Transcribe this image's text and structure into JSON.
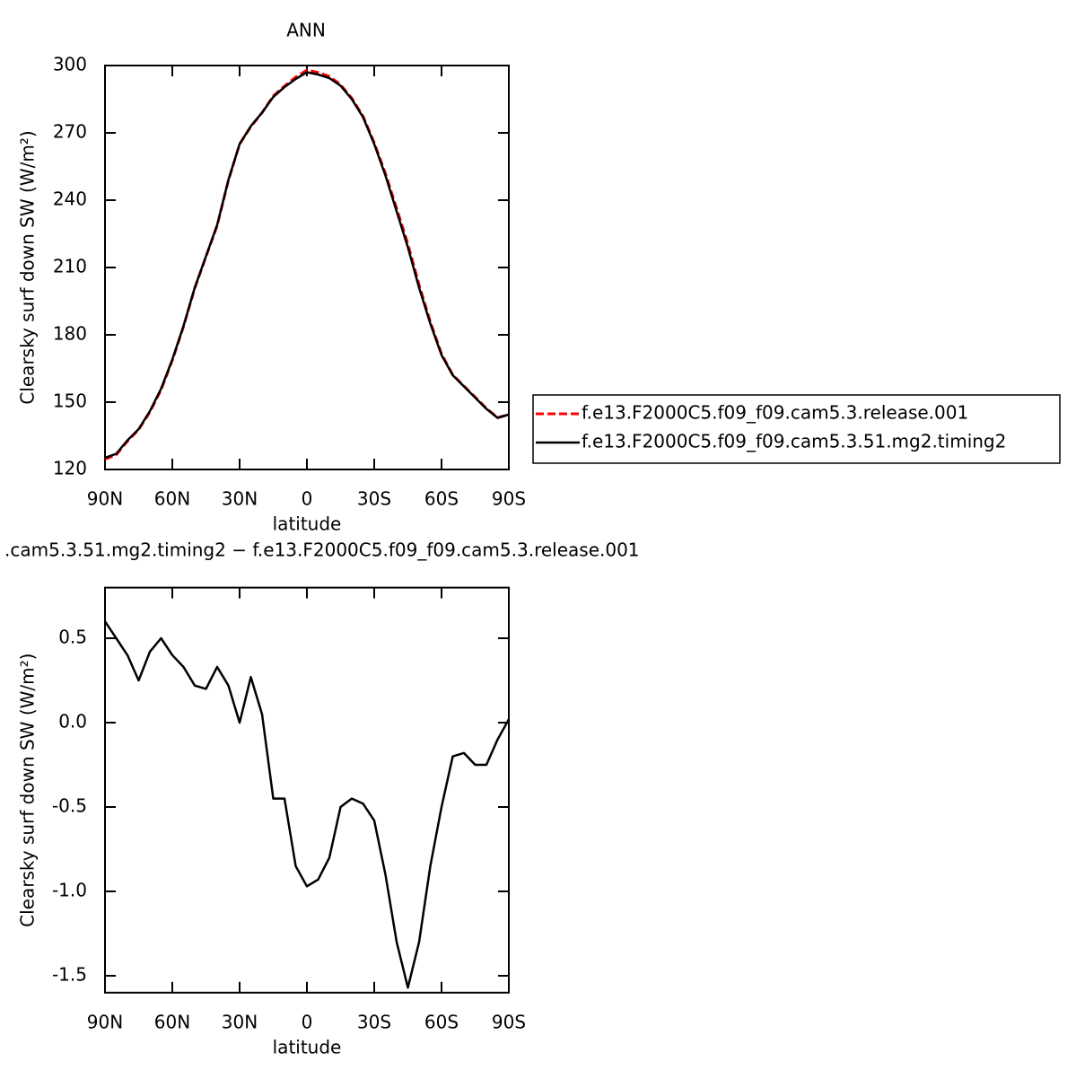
{
  "chart_data": [
    {
      "type": "line",
      "title": "ANN",
      "xlabel": "latitude",
      "ylabel": "Clearsky surf down SW (W/m²)",
      "x": [
        90,
        85,
        80,
        75,
        70,
        65,
        60,
        55,
        50,
        45,
        40,
        35,
        30,
        25,
        20,
        15,
        10,
        5,
        0,
        -5,
        -10,
        -15,
        -20,
        -25,
        -30,
        -35,
        -40,
        -45,
        -50,
        -55,
        -60,
        -65,
        -70,
        -75,
        -80,
        -85,
        -90
      ],
      "series": [
        {
          "name": "f.e13.F2000C5.f09_f09.cam5.3.release.001",
          "color": "#ff0000",
          "dash": true,
          "values": [
            124.6,
            126.5,
            132.6,
            137.75,
            145.58,
            155.5,
            168.6,
            183.67,
            200.78,
            214.8,
            228.67,
            248.78,
            265,
            272.73,
            278.95,
            286.45,
            290.85,
            294.85,
            297.97,
            296.93,
            295.2,
            291.5,
            285.45,
            277.48,
            265.58,
            251.9,
            236.3,
            220.57,
            202.3,
            185.85,
            171.5,
            162.2,
            157.18,
            152.25,
            147.25,
            143.1,
            144.48
          ]
        },
        {
          "name": "f.e13.F2000C5.f09_f09.cam5.3.51.mg2.timing2",
          "color": "#000000",
          "dash": false,
          "values": [
            125.2,
            127,
            133,
            138,
            146,
            156,
            169,
            184,
            201,
            215,
            229,
            249,
            265,
            273,
            279,
            286,
            290.4,
            294,
            297,
            296,
            294.4,
            291,
            285,
            277,
            265,
            251,
            235,
            219,
            201,
            185,
            171,
            162,
            157,
            152,
            147,
            143,
            144.5
          ]
        }
      ],
      "xlim": [
        90,
        -90
      ],
      "xticks": [
        {
          "value": 90,
          "label": "90N"
        },
        {
          "value": 60,
          "label": "60N"
        },
        {
          "value": 30,
          "label": "30N"
        },
        0,
        {
          "value": -30,
          "label": "30S"
        },
        {
          "value": -60,
          "label": "60S"
        },
        {
          "value": -90,
          "label": "90S"
        }
      ],
      "ylim": [
        120,
        300
      ],
      "yticks": [
        120,
        150,
        180,
        210,
        240,
        270,
        300
      ],
      "legend": "right"
    },
    {
      "type": "line",
      "title": ".cam5.3.51.mg2.timing2 − f.e13.F2000C5.f09_f09.cam5.3.release.001",
      "xlabel": "latitude",
      "ylabel": "Clearsky surf down SW (W/m²)",
      "x": [
        90,
        85,
        80,
        75,
        70,
        65,
        60,
        55,
        50,
        45,
        40,
        35,
        30,
        25,
        20,
        15,
        10,
        5,
        0,
        -5,
        -10,
        -15,
        -20,
        -25,
        -30,
        -35,
        -40,
        -45,
        -50,
        -55,
        -60,
        -65,
        -70,
        -75,
        -80,
        -85,
        -90
      ],
      "series": [
        {
          "color": "#000000",
          "dash": false,
          "values": [
            0.6,
            0.5,
            0.4,
            0.25,
            0.42,
            0.5,
            0.4,
            0.33,
            0.22,
            0.2,
            0.33,
            0.22,
            0,
            0.27,
            0.05,
            -0.45,
            -0.45,
            -0.85,
            -0.97,
            -0.93,
            -0.8,
            -0.5,
            -0.45,
            -0.48,
            -0.58,
            -0.9,
            -1.3,
            -1.57,
            -1.3,
            -0.85,
            -0.5,
            -0.2,
            -0.18,
            -0.25,
            -0.25,
            -0.1,
            0.02
          ]
        }
      ],
      "xlim": [
        90,
        -90
      ],
      "xticks": [
        {
          "value": 90,
          "label": "90N"
        },
        {
          "value": 60,
          "label": "60N"
        },
        {
          "value": 30,
          "label": "30N"
        },
        0,
        {
          "value": -30,
          "label": "30S"
        },
        {
          "value": -60,
          "label": "60S"
        },
        {
          "value": -90,
          "label": "90S"
        }
      ],
      "ylim": [
        -1.6,
        0.8
      ],
      "yticks": [
        0.5,
        {
          "value": 0,
          "label": "0.0"
        },
        -0.5,
        {
          "value": -1,
          "label": "-1.0"
        },
        -1.5
      ]
    }
  ]
}
